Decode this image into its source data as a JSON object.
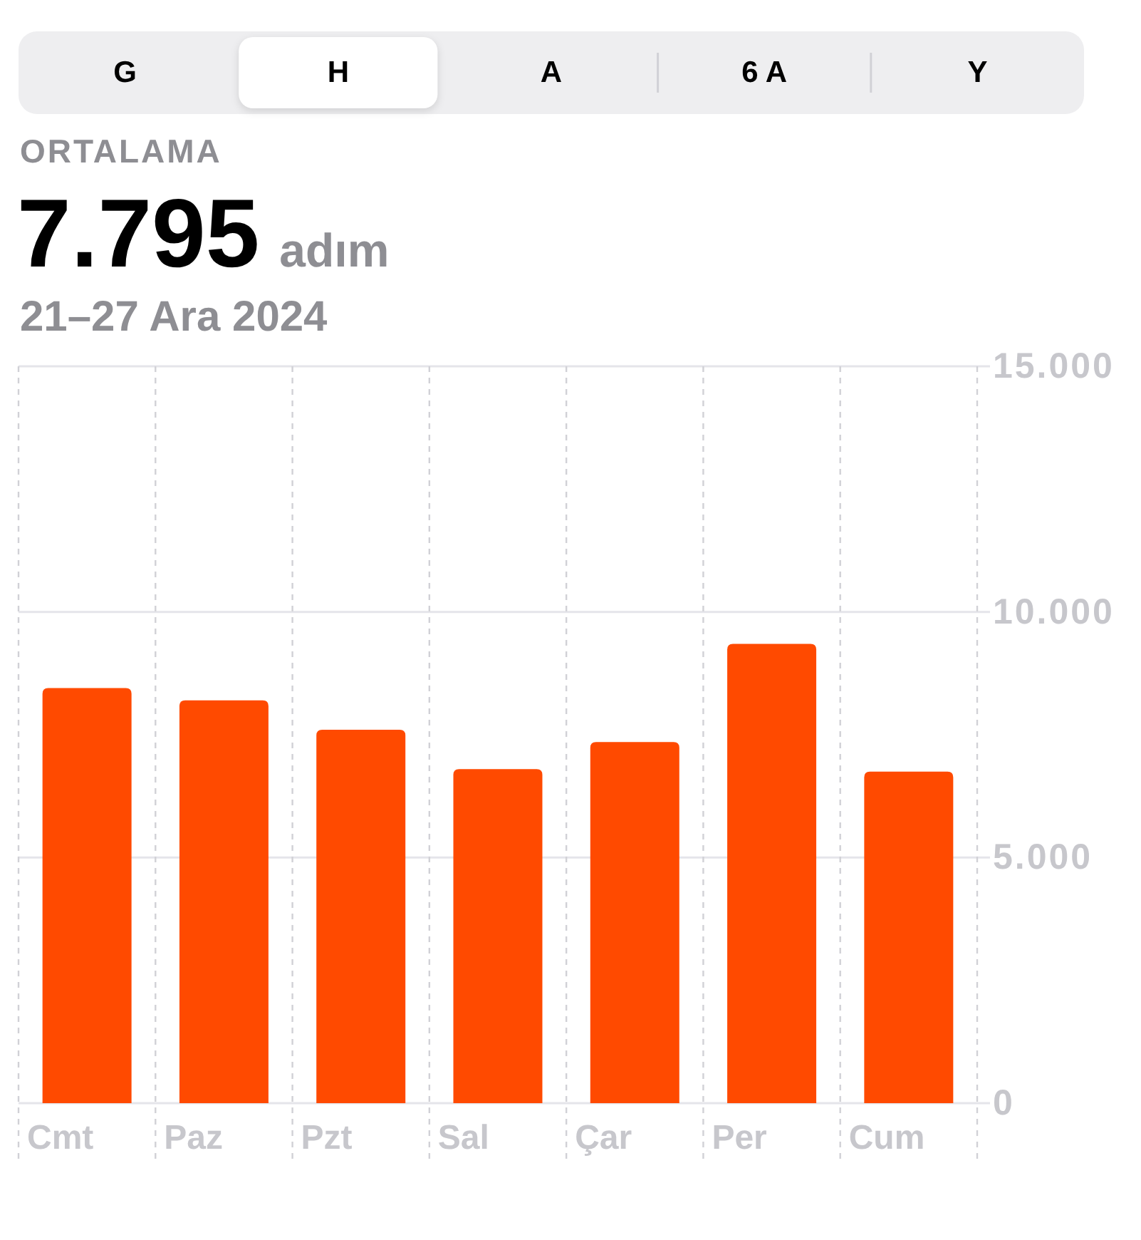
{
  "chart_data": {
    "type": "bar",
    "title": "ORTALAMA",
    "subtitle": "7.795 adım",
    "annotations": [
      "21–27 Ara 2024",
      "G",
      "H",
      "A",
      "6 A",
      "Y"
    ],
    "categories": [
      "Cmt",
      "Paz",
      "Pzt",
      "Sal",
      "Çar",
      "Per",
      "Cum"
    ],
    "values": [
      8450,
      8200,
      7600,
      6800,
      7350,
      9350,
      6750
    ],
    "color": "#ff4a00",
    "ylim": [
      0,
      15000
    ],
    "yticks": [
      0,
      {
        "value": 5000,
        "label": "5.000"
      },
      {
        "value": 10000,
        "label": "10.000"
      },
      {
        "value": 15000,
        "label": "15.000"
      }
    ],
    "grid": true
  }
}
